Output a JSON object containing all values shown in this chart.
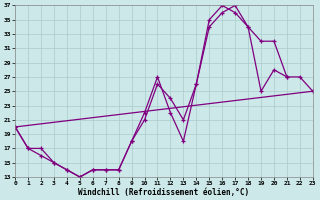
{
  "xlabel": "Windchill (Refroidissement éolien,°C)",
  "bg_color": "#cce8e8",
  "line_color": "#800080",
  "grid_color": "#aacccc",
  "xlim": [
    0,
    23
  ],
  "ylim": [
    13,
    37
  ],
  "xticks": [
    0,
    1,
    2,
    3,
    4,
    5,
    6,
    7,
    8,
    9,
    10,
    11,
    12,
    13,
    14,
    15,
    16,
    17,
    18,
    19,
    20,
    21,
    22,
    23
  ],
  "yticks": [
    13,
    15,
    17,
    19,
    21,
    23,
    25,
    27,
    29,
    31,
    33,
    35,
    37
  ],
  "line1_x": [
    0,
    1,
    2,
    3,
    4,
    5,
    6,
    7,
    8,
    9,
    10,
    11,
    12,
    13,
    14,
    15,
    16,
    17,
    18,
    19,
    20,
    21
  ],
  "line1_y": [
    20,
    17,
    17,
    15,
    14,
    13,
    14,
    14,
    14,
    18,
    22,
    27,
    22,
    18,
    26,
    35,
    37,
    36,
    34,
    25,
    28,
    27
  ],
  "line2_x": [
    0,
    1,
    2,
    3,
    4,
    5,
    6,
    7,
    8,
    9,
    10,
    11,
    12,
    13,
    14,
    15,
    16,
    17,
    18,
    19,
    20,
    21,
    22,
    23
  ],
  "line2_y": [
    20,
    17,
    16,
    15,
    14,
    13,
    14,
    14,
    14,
    18,
    21,
    26,
    24,
    21,
    26,
    34,
    36,
    37,
    34,
    32,
    32,
    27,
    27,
    25
  ],
  "line3_x": [
    0,
    23
  ],
  "line3_y": [
    20,
    25
  ]
}
